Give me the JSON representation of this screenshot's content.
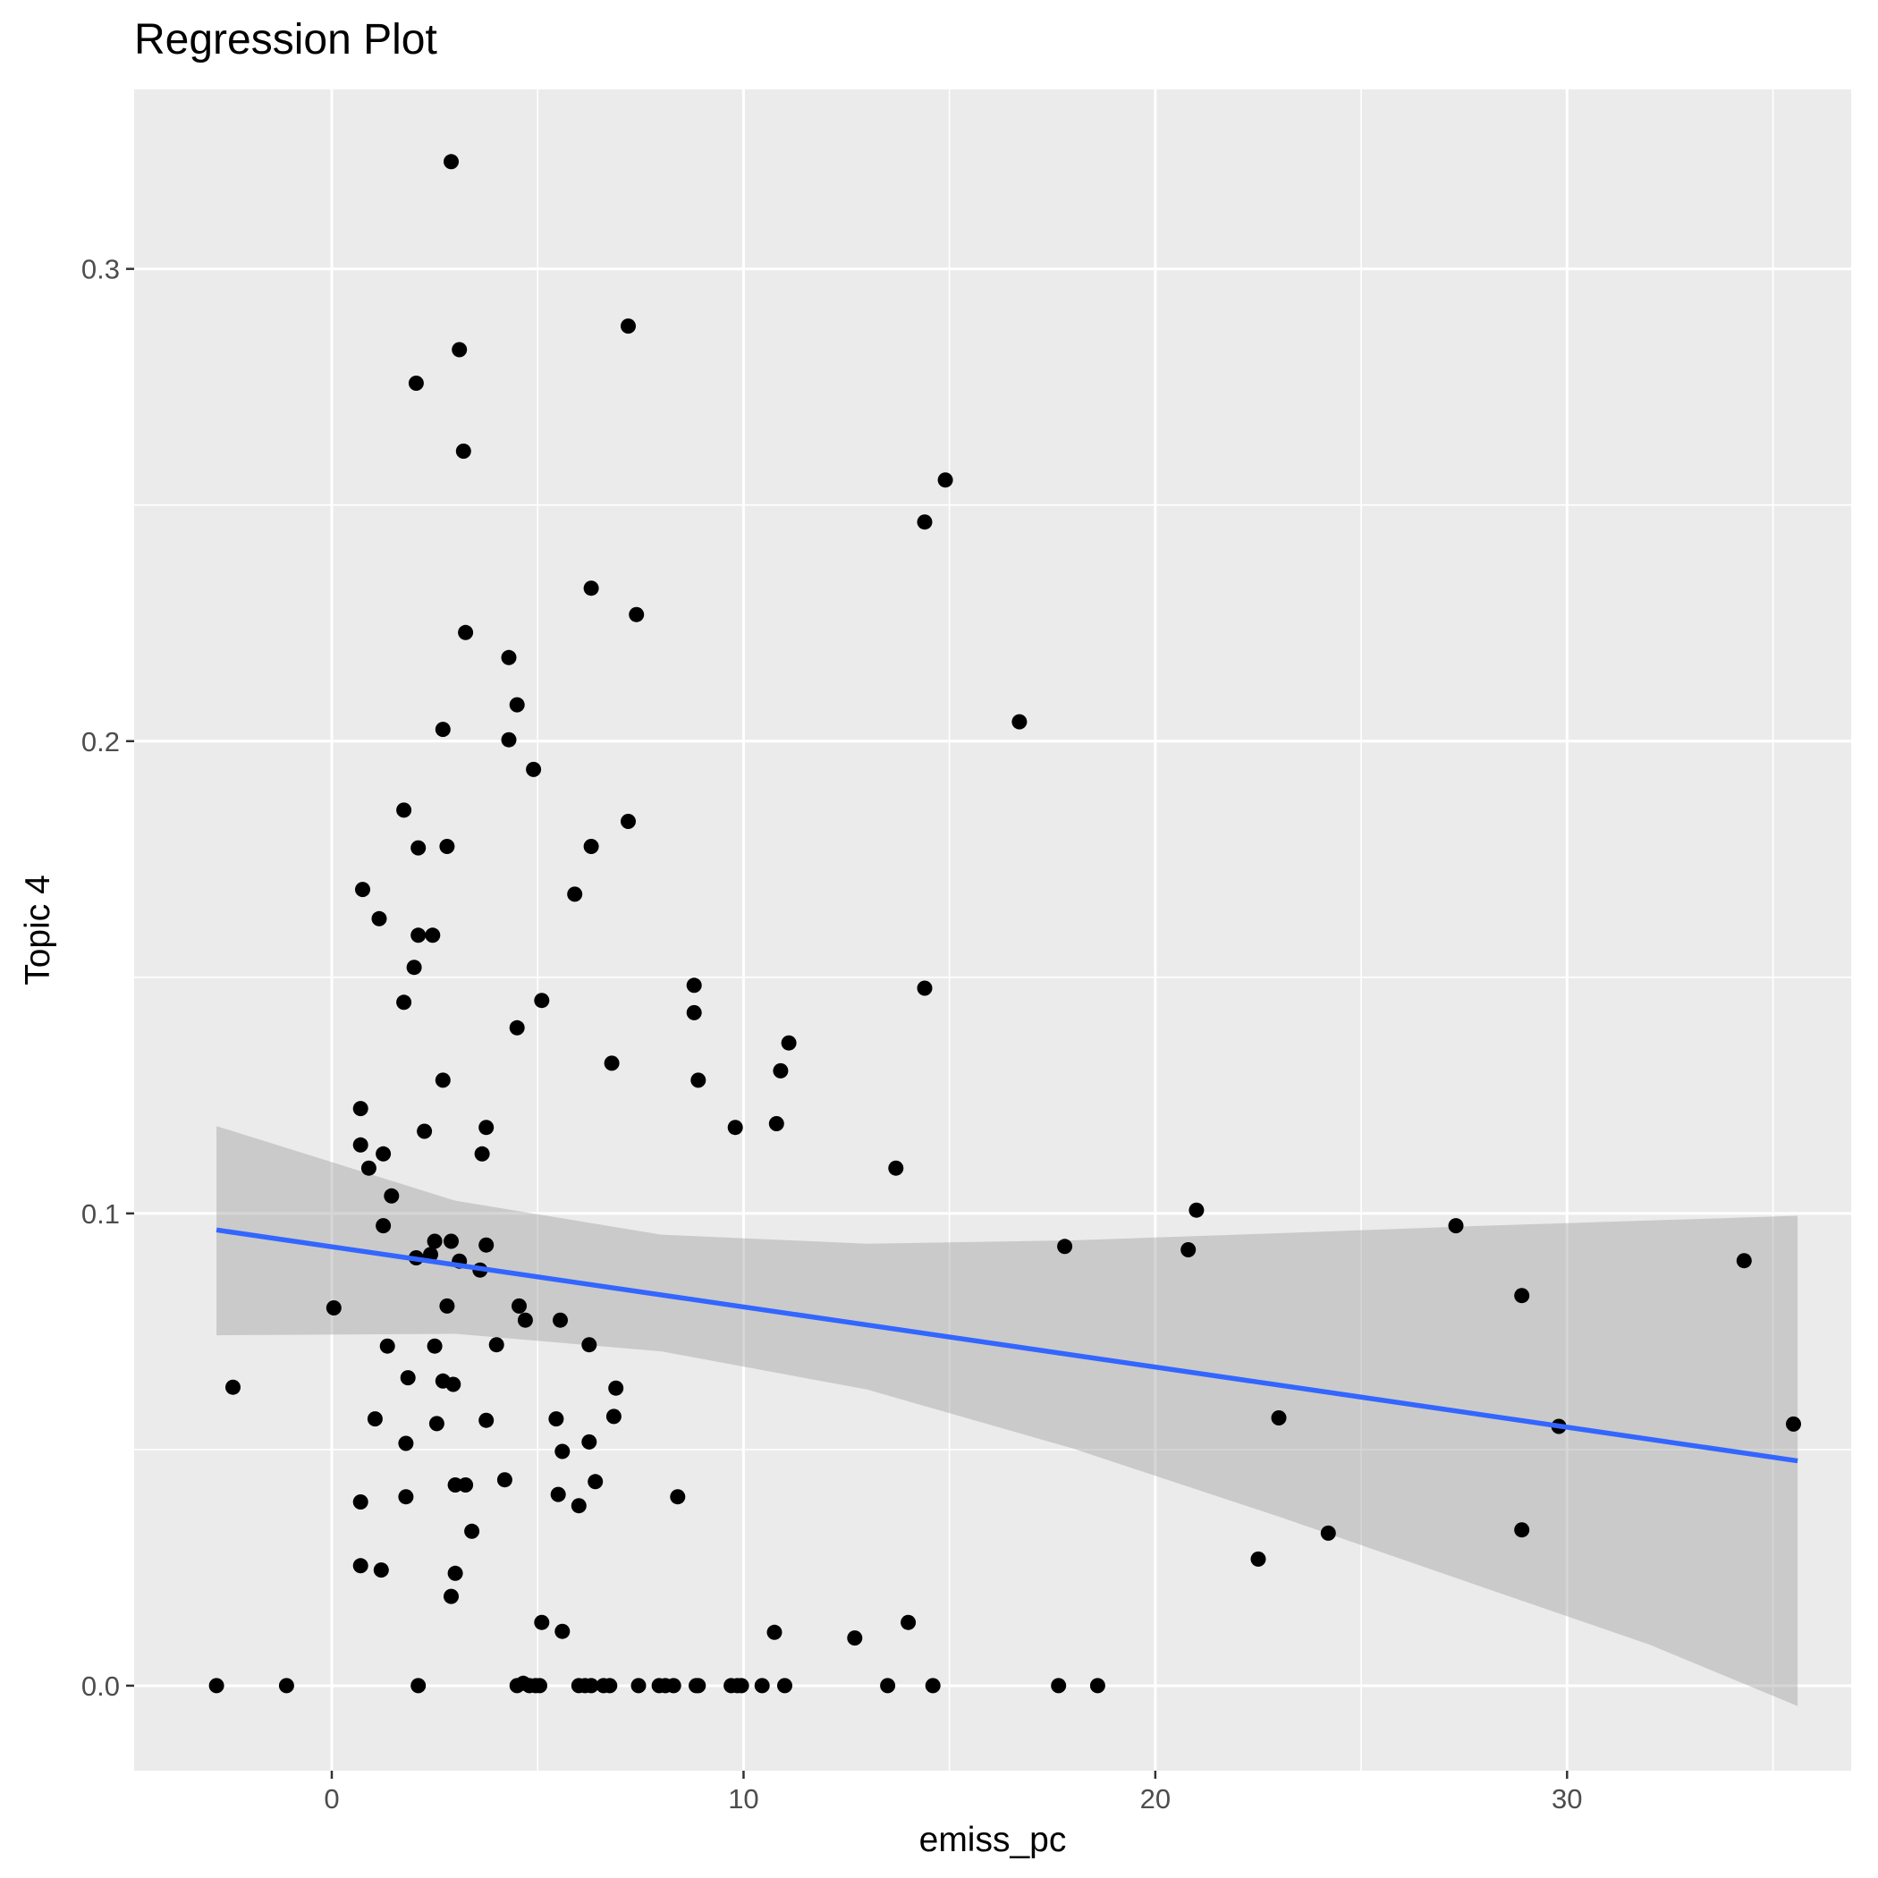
{
  "chart_data": {
    "type": "scatter",
    "title": "Regression Plot",
    "xlabel": "emiss_pc",
    "ylabel": "Topic 4",
    "xlim": [
      -4.8,
      36.9
    ],
    "ylim": [
      -0.018,
      0.338
    ],
    "x_ticks": [
      0,
      10,
      20,
      30
    ],
    "x_tick_labels": [
      "0",
      "10",
      "20",
      "30"
    ],
    "x_minor_ticks": [
      -5,
      5,
      15,
      25,
      35
    ],
    "y_ticks": [
      0.0,
      0.1,
      0.2,
      0.3
    ],
    "y_tick_labels": [
      "0.0",
      "0.1",
      "0.2",
      "0.3"
    ],
    "y_minor_ticks": [
      0.05,
      0.15,
      0.25
    ],
    "grid": true,
    "colors": {
      "panel_background": "#ebebeb",
      "grid_line": "#ffffff",
      "point": "#000000",
      "regression_line": "#3366ff",
      "confidence_band": "#999999",
      "tick_label": "#4d4d4d",
      "tick_mark": "#333333"
    },
    "regression": {
      "x_range": [
        -2.8,
        35.6
      ],
      "line": [
        [
          -2.8,
          0.0965
        ],
        [
          35.6,
          0.0476
        ]
      ],
      "band_upper": [
        [
          -2.8,
          0.1185
        ],
        [
          3,
          0.1027
        ],
        [
          8,
          0.0955
        ],
        [
          13,
          0.0936
        ],
        [
          18,
          0.0943
        ],
        [
          23,
          0.0958
        ],
        [
          28,
          0.0974
        ],
        [
          32,
          0.0985
        ],
        [
          35.6,
          0.0995
        ]
      ],
      "band_lower": [
        [
          -2.8,
          0.0742
        ],
        [
          3,
          0.0745
        ],
        [
          8,
          0.0708
        ],
        [
          13,
          0.0627
        ],
        [
          18,
          0.0502
        ],
        [
          23,
          0.0358
        ],
        [
          28,
          0.0207
        ],
        [
          32,
          0.0087
        ],
        [
          35.6,
          -0.0043
        ]
      ]
    },
    "points": [
      [
        2.9,
        0.3227
      ],
      [
        7.2,
        0.2879
      ],
      [
        3.1,
        0.2829
      ],
      [
        2.05,
        0.2758
      ],
      [
        3.2,
        0.2614
      ],
      [
        14.9,
        0.2553
      ],
      [
        14.4,
        0.2464
      ],
      [
        6.3,
        0.2324
      ],
      [
        7.4,
        0.2268
      ],
      [
        3.25,
        0.223
      ],
      [
        4.3,
        0.2177
      ],
      [
        4.5,
        0.2077
      ],
      [
        2.7,
        0.2025
      ],
      [
        16.7,
        0.2041
      ],
      [
        4.3,
        0.2003
      ],
      [
        4.9,
        0.194
      ],
      [
        1.75,
        0.1854
      ],
      [
        2.1,
        0.1774
      ],
      [
        2.8,
        0.1777
      ],
      [
        6.3,
        0.1777
      ],
      [
        7.2,
        0.183
      ],
      [
        0.75,
        0.1686
      ],
      [
        5.9,
        0.1676
      ],
      [
        1.15,
        0.1624
      ],
      [
        2.1,
        0.1589
      ],
      [
        2.45,
        0.1589
      ],
      [
        2.0,
        0.1521
      ],
      [
        8.8,
        0.1483
      ],
      [
        14.4,
        0.1477
      ],
      [
        8.8,
        0.1425
      ],
      [
        1.75,
        0.1447
      ],
      [
        5.1,
        0.1451
      ],
      [
        4.5,
        0.1393
      ],
      [
        11.1,
        0.1361
      ],
      [
        6.8,
        0.1318
      ],
      [
        10.9,
        0.1302
      ],
      [
        2.7,
        0.1282
      ],
      [
        8.9,
        0.1282
      ],
      [
        0.7,
        0.1222
      ],
      [
        10.8,
        0.119
      ],
      [
        9.8,
        0.1182
      ],
      [
        3.75,
        0.1182
      ],
      [
        2.25,
        0.1174
      ],
      [
        0.7,
        0.1145
      ],
      [
        1.25,
        0.1126
      ],
      [
        3.65,
        0.1126
      ],
      [
        0.9,
        0.1096
      ],
      [
        13.7,
        0.1096
      ],
      [
        21.0,
        0.1007
      ],
      [
        1.45,
        0.1037
      ],
      [
        27.3,
        0.0974
      ],
      [
        1.25,
        0.0974
      ],
      [
        2.9,
        0.0941
      ],
      [
        2.5,
        0.0941
      ],
      [
        3.75,
        0.0933
      ],
      [
        17.8,
        0.093
      ],
      [
        20.8,
        0.0923
      ],
      [
        2.4,
        0.0913
      ],
      [
        2.05,
        0.0906
      ],
      [
        3.1,
        0.0899
      ],
      [
        34.3,
        0.09
      ],
      [
        3.6,
        0.088
      ],
      [
        0.05,
        0.08
      ],
      [
        2.8,
        0.0804
      ],
      [
        4.55,
        0.0804
      ],
      [
        28.9,
        0.0826
      ],
      [
        4.7,
        0.0774
      ],
      [
        5.55,
        0.0774
      ],
      [
        1.35,
        0.0719
      ],
      [
        2.5,
        0.0719
      ],
      [
        4.0,
        0.0722
      ],
      [
        6.25,
        0.0722
      ],
      [
        1.85,
        0.0652
      ],
      [
        2.7,
        0.0645
      ],
      [
        2.95,
        0.0638
      ],
      [
        -2.4,
        0.0632
      ],
      [
        6.9,
        0.063
      ],
      [
        1.05,
        0.0565
      ],
      [
        2.55,
        0.0555
      ],
      [
        3.75,
        0.0562
      ],
      [
        5.45,
        0.0565
      ],
      [
        6.85,
        0.057
      ],
      [
        23.0,
        0.0567
      ],
      [
        29.8,
        0.0549
      ],
      [
        35.5,
        0.0554
      ],
      [
        1.8,
        0.0513
      ],
      [
        6.25,
        0.0516
      ],
      [
        5.6,
        0.0496
      ],
      [
        4.2,
        0.0436
      ],
      [
        6.4,
        0.0432
      ],
      [
        3.0,
        0.0425
      ],
      [
        3.25,
        0.0425
      ],
      [
        5.5,
        0.0405
      ],
      [
        8.4,
        0.04
      ],
      [
        1.8,
        0.04
      ],
      [
        0.7,
        0.0389
      ],
      [
        6.0,
        0.0381
      ],
      [
        3.4,
        0.0327
      ],
      [
        24.2,
        0.0323
      ],
      [
        28.9,
        0.033
      ],
      [
        0.7,
        0.0254
      ],
      [
        1.2,
        0.0245
      ],
      [
        3.0,
        0.0238
      ],
      [
        22.5,
        0.0268
      ],
      [
        2.9,
        0.0189
      ],
      [
        5.1,
        0.0134
      ],
      [
        5.6,
        0.0115
      ],
      [
        10.75,
        0.0113
      ],
      [
        14.0,
        0.0134
      ],
      [
        12.7,
        0.0101
      ],
      [
        -2.8,
        0.0
      ],
      [
        -1.1,
        0.0
      ],
      [
        2.1,
        0.0
      ],
      [
        4.5,
        0.0
      ],
      [
        4.65,
        0.0005
      ],
      [
        4.8,
        0.0
      ],
      [
        4.95,
        0.0
      ],
      [
        5.05,
        0.0
      ],
      [
        6.0,
        0.0
      ],
      [
        6.15,
        0.0
      ],
      [
        6.3,
        0.0
      ],
      [
        6.6,
        0.0
      ],
      [
        6.75,
        0.0
      ],
      [
        7.45,
        0.0
      ],
      [
        7.95,
        0.0
      ],
      [
        8.1,
        0.0
      ],
      [
        8.3,
        0.0
      ],
      [
        8.85,
        0.0
      ],
      [
        8.9,
        0.0
      ],
      [
        9.7,
        0.0
      ],
      [
        9.85,
        0.0
      ],
      [
        9.95,
        0.0
      ],
      [
        10.45,
        0.0
      ],
      [
        11.0,
        0.0
      ],
      [
        13.5,
        0.0
      ],
      [
        14.6,
        0.0
      ],
      [
        17.65,
        0.0
      ],
      [
        18.6,
        0.0
      ]
    ]
  }
}
